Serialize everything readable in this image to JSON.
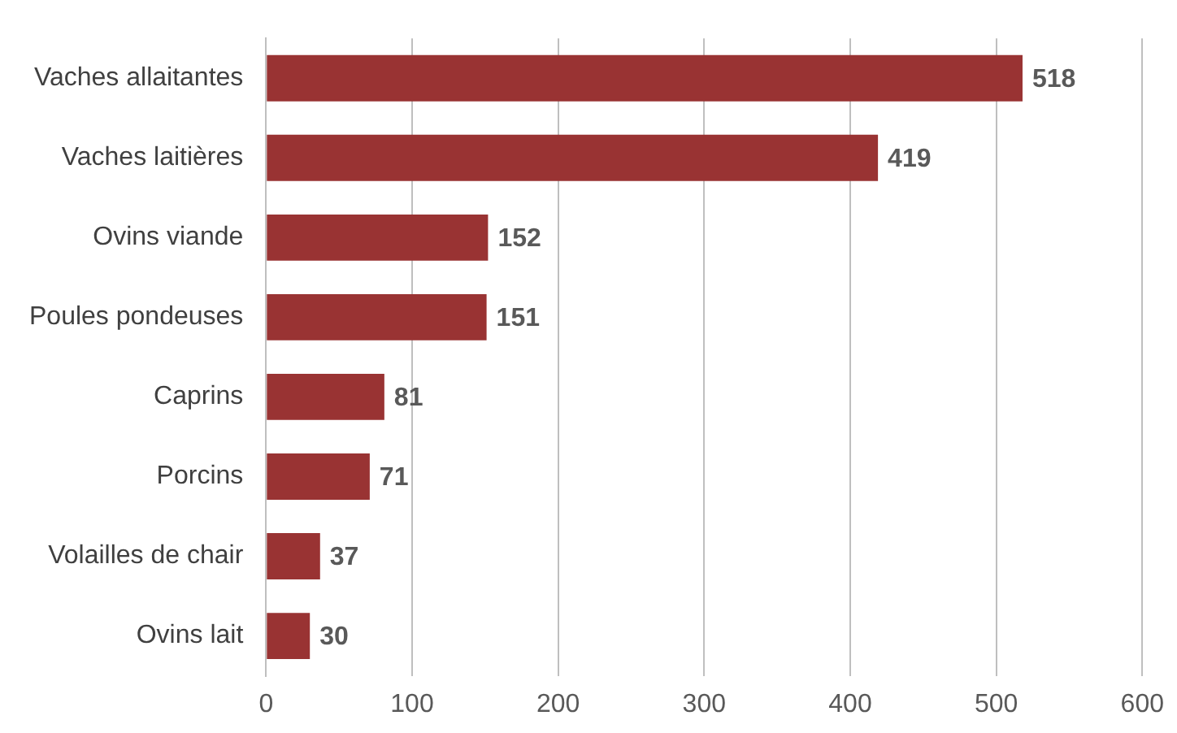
{
  "chart_data": {
    "type": "bar",
    "orientation": "horizontal",
    "categories": [
      "Vaches allaitantes",
      "Vaches laitières",
      "Ovins viande",
      "Poules pondeuses",
      "Caprins",
      "Porcins",
      "Volailles de chair",
      "Ovins lait"
    ],
    "values": [
      518,
      419,
      152,
      151,
      81,
      71,
      37,
      30
    ],
    "color": "#993333",
    "xlim": [
      0,
      600
    ],
    "xticks": [
      0,
      100,
      200,
      300,
      400,
      500,
      600
    ],
    "grid": "x",
    "data_labels": true,
    "legend": false
  }
}
